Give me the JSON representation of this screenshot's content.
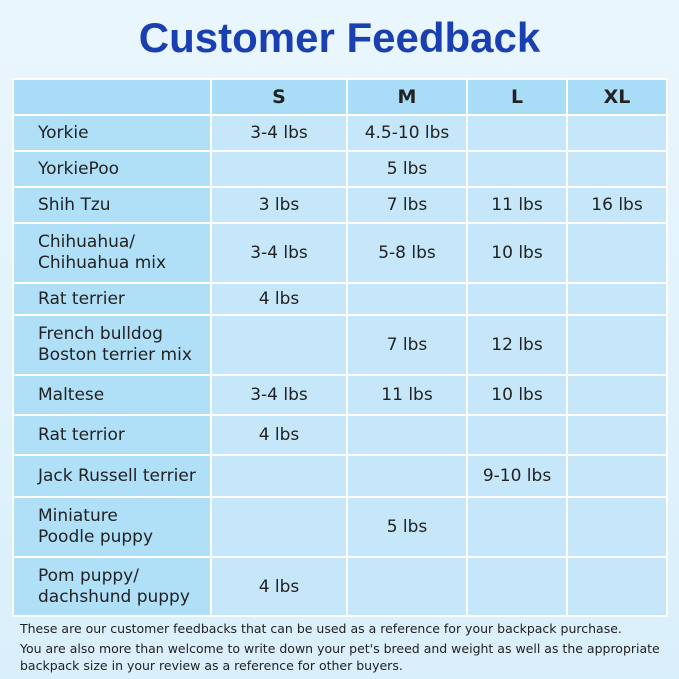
{
  "header": {
    "title": "Customer Feedback"
  },
  "table": {
    "columns": [
      null,
      "S",
      "M",
      "L",
      "XL"
    ],
    "rows": [
      [
        [
          "Yorkie"
        ],
        "3-4 lbs",
        "4.5-10 lbs",
        null,
        null
      ],
      [
        [
          "YorkiePoo"
        ],
        null,
        "5 lbs",
        null,
        null
      ],
      [
        [
          "Shih Tzu"
        ],
        "3 lbs",
        "7 lbs",
        "11 lbs",
        "16 lbs"
      ],
      [
        [
          "Chihuahua/",
          "Chihuahua mix"
        ],
        "3-4 lbs",
        "5-8 lbs",
        "10 lbs",
        null
      ],
      [
        [
          "Rat terrier"
        ],
        "4 lbs",
        null,
        null,
        null
      ],
      [
        [
          "French bulldog",
          "Boston terrier mix"
        ],
        null,
        "7 lbs",
        "12 lbs",
        null
      ],
      [
        [
          "Maltese"
        ],
        "3-4 lbs",
        "11 lbs",
        "10 lbs",
        null
      ],
      [
        [
          "Rat terrior"
        ],
        "4 lbs",
        null,
        null,
        null
      ],
      [
        [
          "Jack Russell terrier"
        ],
        null,
        null,
        "9-10 lbs",
        null
      ],
      [
        [
          "Miniature",
          "Poodle puppy"
        ],
        null,
        "5 lbs",
        null,
        null
      ],
      [
        [
          "Pom puppy/",
          "dachshund puppy"
        ],
        "4 lbs",
        null,
        null,
        null
      ]
    ]
  },
  "footer": {
    "notes": [
      "These are our customer feedbacks that can be used as a reference for your backpack purchase.",
      "You are also more than welcome to write down your pet's breed and weight as well as the appropriate backpack size in your review as a reference for other buyers."
    ]
  }
}
